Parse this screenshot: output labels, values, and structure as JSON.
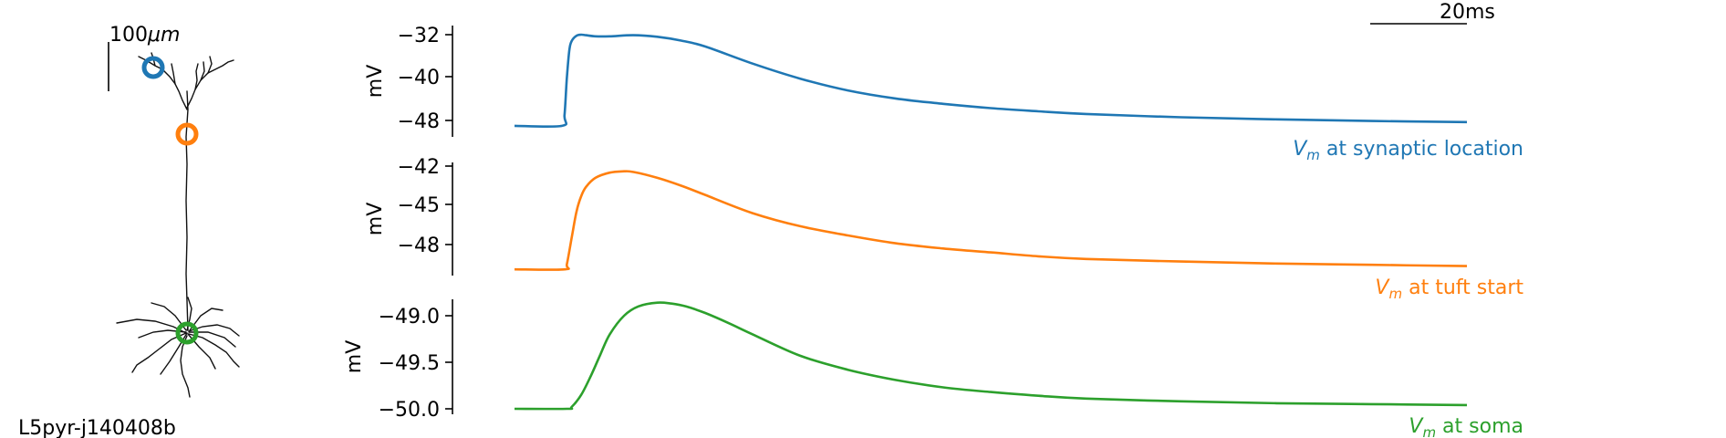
{
  "neuron": {
    "label": "L5pyr-j140408b",
    "scale_label_num": "100",
    "scale_label_unit": "μm",
    "markers": [
      {
        "name": "synaptic-location",
        "color": "#1f77b4"
      },
      {
        "name": "tuft-start",
        "color": "#ff7f0e"
      },
      {
        "name": "soma",
        "color": "#2ca02c"
      }
    ]
  },
  "time_scale": {
    "label": "20ms"
  },
  "chart_data": [
    {
      "type": "line",
      "ylabel": "mV",
      "yticks": [
        -32,
        -40,
        -48
      ],
      "ylim": [
        -49,
        -30
      ],
      "series": [
        {
          "name": "V_m at synaptic location",
          "name_var": "V",
          "name_sub": "m",
          "name_rest": " at synaptic location",
          "color": "#1f77b4",
          "x": [
            0,
            10,
            10.5,
            11,
            11.5,
            12,
            13,
            14,
            15,
            17,
            20,
            25,
            30,
            35,
            40,
            50,
            60,
            70,
            80,
            90,
            100,
            110,
            120,
            140,
            160,
            180,
            200
          ],
          "y": [
            -49,
            -49,
            -47,
            -40,
            -35,
            -33.2,
            -32.2,
            -32,
            -32.1,
            -32.3,
            -32.3,
            -32.1,
            -32.4,
            -33.1,
            -34.2,
            -37.4,
            -40.2,
            -42.4,
            -43.9,
            -44.9,
            -45.7,
            -46.3,
            -46.8,
            -47.4,
            -47.8,
            -48.1,
            -48.3
          ]
        }
      ]
    },
    {
      "type": "line",
      "ylabel": "mV",
      "yticks": [
        -42,
        -45,
        -48
      ],
      "ylim": [
        -50,
        -41.8
      ],
      "series": [
        {
          "name": "V_m at tuft start",
          "name_var": "V",
          "name_sub": "m",
          "name_rest": " at tuft start",
          "color": "#ff7f0e",
          "x": [
            0,
            10.5,
            11,
            12,
            13,
            14,
            15,
            17,
            20,
            23,
            25,
            30,
            35,
            40,
            50,
            60,
            70,
            80,
            90,
            100,
            110,
            120,
            140,
            160,
            180,
            200
          ],
          "y": [
            -49.9,
            -49.9,
            -49.5,
            -47.5,
            -45.5,
            -44.3,
            -43.6,
            -42.9,
            -42.5,
            -42.4,
            -42.45,
            -42.9,
            -43.5,
            -44.2,
            -45.6,
            -46.6,
            -47.3,
            -47.9,
            -48.3,
            -48.6,
            -48.9,
            -49.1,
            -49.3,
            -49.45,
            -49.55,
            -49.65
          ]
        }
      ]
    },
    {
      "type": "line",
      "ylabel": "mV",
      "yticks": [
        "−49.0",
        "−49.5",
        "−50.0"
      ],
      "ytick_values": [
        -49.0,
        -49.5,
        -50.0
      ],
      "ylim": [
        -50.1,
        -48.8
      ],
      "series": [
        {
          "name": "V_m at soma",
          "name_var": "V",
          "name_sub": "m",
          "name_rest": " at soma",
          "color": "#2ca02c",
          "x": [
            0,
            11,
            12,
            14,
            16,
            18,
            20,
            23,
            26,
            30,
            33,
            36,
            40,
            45,
            50,
            60,
            70,
            80,
            90,
            100,
            110,
            120,
            140,
            160,
            180,
            200
          ],
          "y": [
            -50,
            -50,
            -49.98,
            -49.85,
            -49.65,
            -49.42,
            -49.2,
            -49.0,
            -48.9,
            -48.86,
            -48.87,
            -48.9,
            -48.97,
            -49.08,
            -49.2,
            -49.43,
            -49.58,
            -49.69,
            -49.77,
            -49.82,
            -49.86,
            -49.89,
            -49.92,
            -49.94,
            -49.95,
            -49.96
          ]
        }
      ]
    }
  ]
}
